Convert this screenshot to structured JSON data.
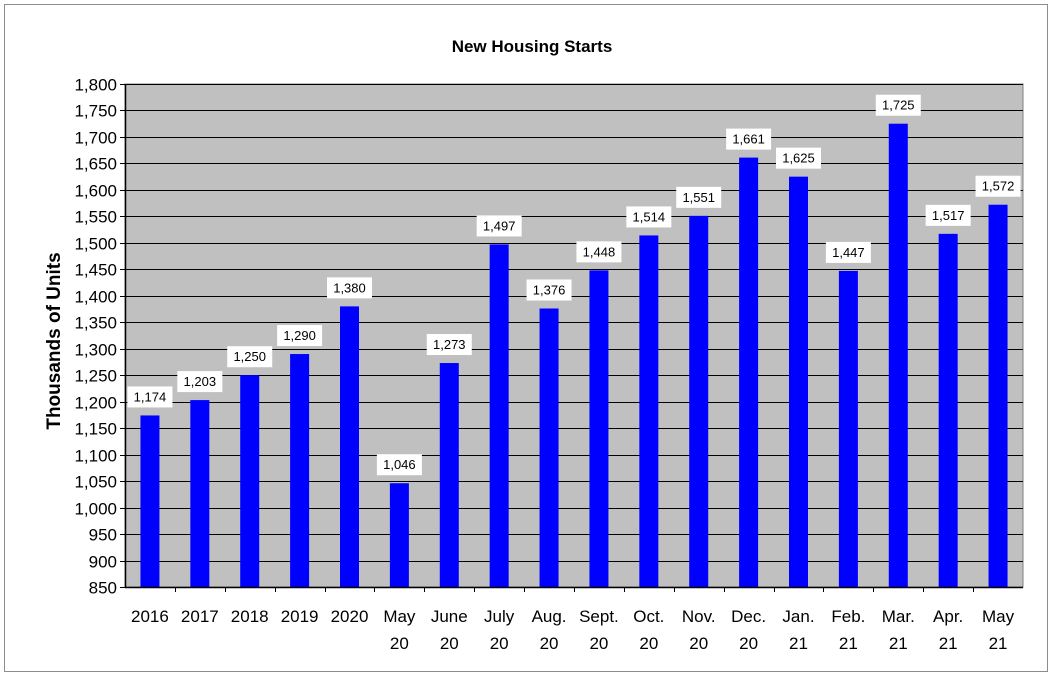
{
  "chart_data": {
    "type": "bar",
    "title": "New Housing Starts",
    "xlabel": "",
    "ylabel": "Thousands of Units",
    "ylim": [
      850,
      1800
    ],
    "ytick_step": 50,
    "grid": true,
    "colors": {
      "bar": "#0000ff",
      "plot_bg": "#c0c0c0",
      "grid": "#000000"
    },
    "categories": [
      [
        "2016"
      ],
      [
        "2017"
      ],
      [
        "2018"
      ],
      [
        "2019"
      ],
      [
        "2020"
      ],
      [
        "May",
        "20"
      ],
      [
        "June",
        "20"
      ],
      [
        "July",
        "20"
      ],
      [
        "Aug.",
        "20"
      ],
      [
        "Sept.",
        "20"
      ],
      [
        "Oct.",
        "20"
      ],
      [
        "Nov.",
        "20"
      ],
      [
        "Dec.",
        "20"
      ],
      [
        "Jan.",
        "21"
      ],
      [
        "Feb.",
        "21"
      ],
      [
        "Mar.",
        "21"
      ],
      [
        "Apr.",
        "21"
      ],
      [
        "May",
        "21"
      ]
    ],
    "values": [
      1174,
      1203,
      1250,
      1290,
      1380,
      1046,
      1273,
      1497,
      1376,
      1448,
      1514,
      1551,
      1661,
      1625,
      1447,
      1725,
      1517,
      1572
    ]
  }
}
